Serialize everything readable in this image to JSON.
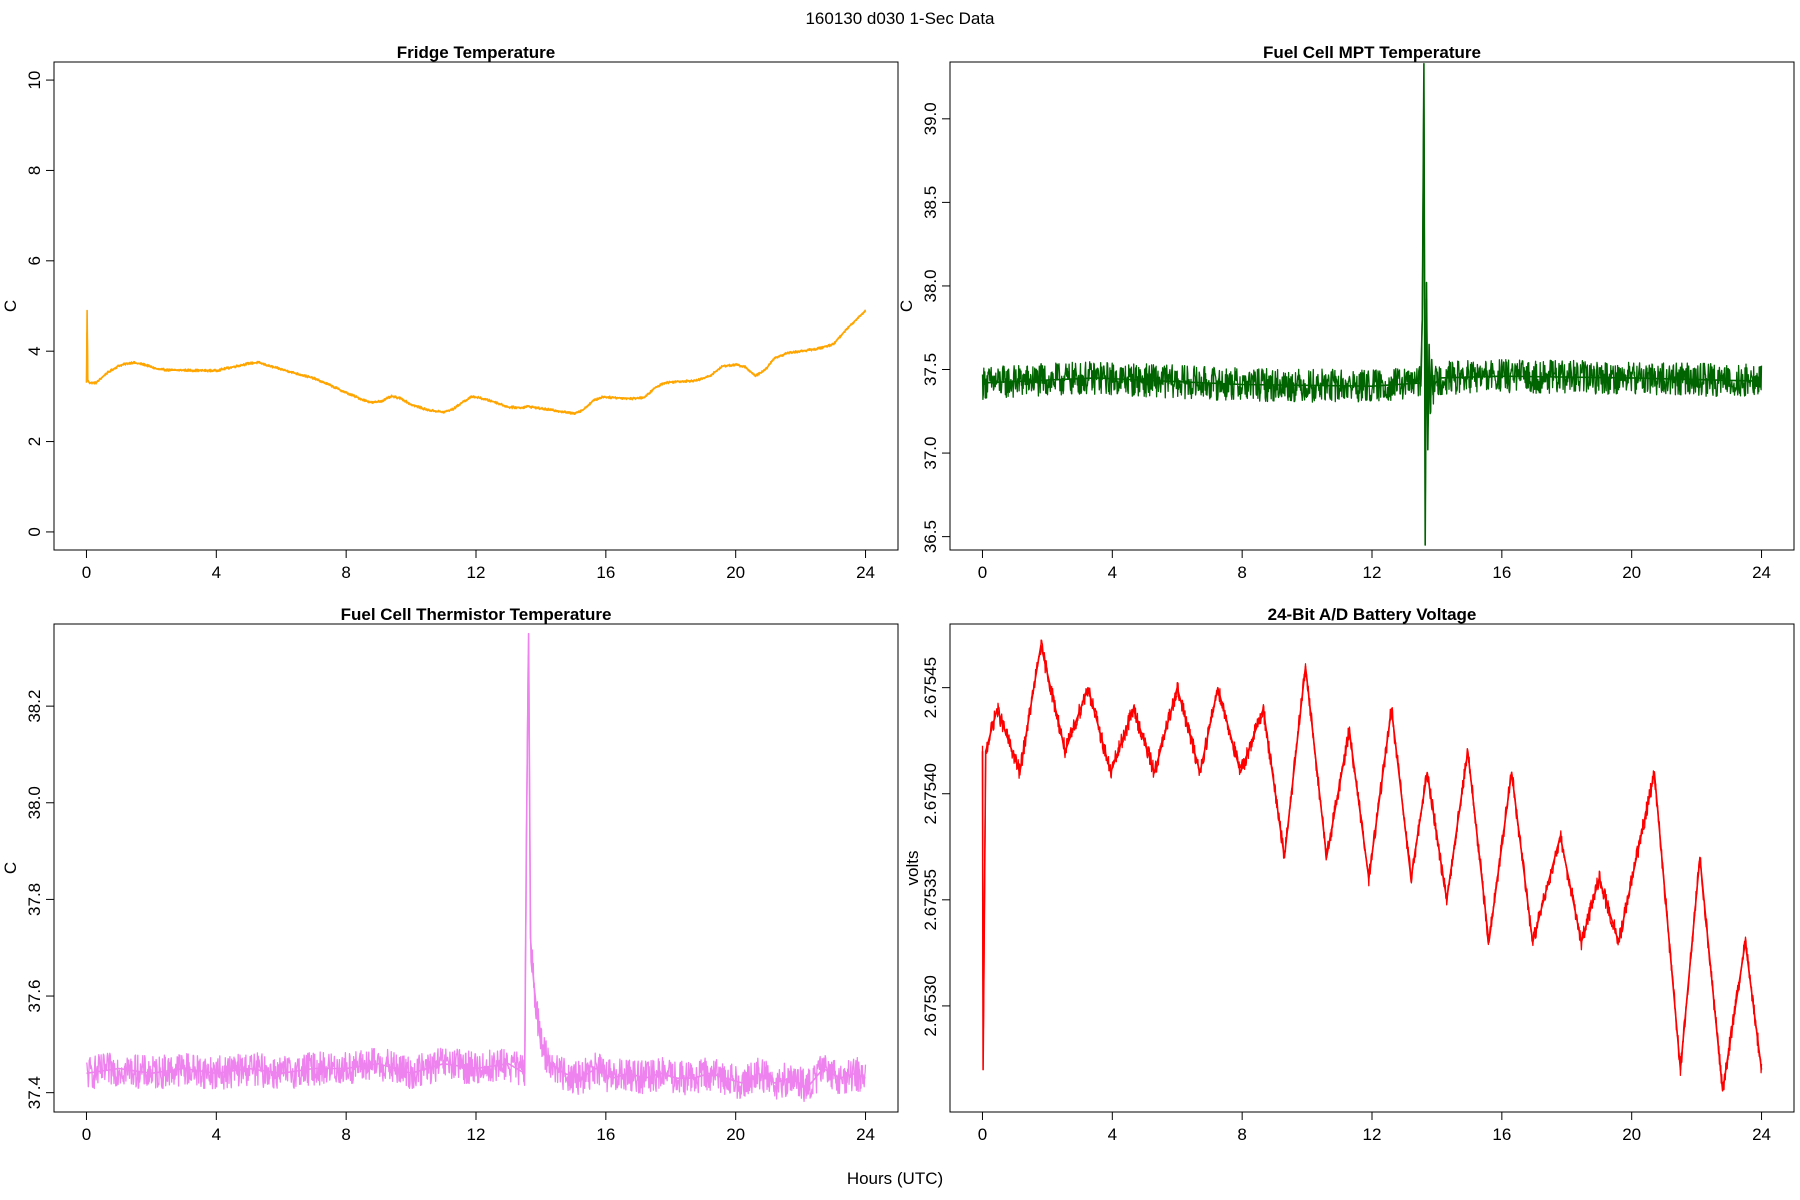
{
  "figure": {
    "title": "160130   d030   1-Sec Data",
    "xlabel": "Hours (UTC)"
  },
  "chart_data": [
    {
      "type": "line",
      "title": "Fridge Temperature",
      "xlabel": "Hours (UTC)",
      "ylabel": "C",
      "xlim": [
        -1,
        25
      ],
      "ylim": [
        -0.4,
        10.4
      ],
      "xticks": [
        0,
        4,
        8,
        12,
        16,
        20,
        24
      ],
      "yticks": [
        0,
        2,
        4,
        6,
        8,
        10
      ],
      "ytick_labels": [
        "0",
        "2",
        "4",
        "6",
        "8",
        "10"
      ],
      "color": "#ffa500",
      "noise": 0.03,
      "series": [
        {
          "x": [
            0,
            0.02,
            0.04,
            0.1,
            0.3,
            0.6,
            1.0,
            1.4,
            1.8,
            2.2,
            2.6,
            3.0,
            3.5,
            4.0,
            4.5,
            5.0,
            5.3,
            5.6,
            6.0,
            6.5,
            7.0,
            7.5,
            8.0,
            8.5,
            8.8,
            9.1,
            9.4,
            9.7,
            10.0,
            10.5,
            11.0,
            11.3,
            11.6,
            11.9,
            12.2,
            12.6,
            13.0,
            13.4,
            13.6,
            14.0,
            14.5,
            15.0,
            15.3,
            15.6,
            15.9,
            16.3,
            16.8,
            17.2,
            17.5,
            17.8,
            18.2,
            18.8,
            19.2,
            19.6,
            20.0,
            20.3,
            20.6,
            20.9,
            21.2,
            21.6,
            22.0,
            22.5,
            23.0,
            23.5,
            24.0
          ],
          "y": [
            3.3,
            4.9,
            3.35,
            3.3,
            3.3,
            3.5,
            3.68,
            3.75,
            3.7,
            3.6,
            3.58,
            3.58,
            3.57,
            3.57,
            3.65,
            3.73,
            3.75,
            3.68,
            3.6,
            3.5,
            3.4,
            3.25,
            3.08,
            2.93,
            2.86,
            2.9,
            3.0,
            2.95,
            2.82,
            2.7,
            2.65,
            2.72,
            2.88,
            3.0,
            2.95,
            2.87,
            2.76,
            2.75,
            2.78,
            2.73,
            2.68,
            2.62,
            2.7,
            2.9,
            2.99,
            2.97,
            2.95,
            2.98,
            3.18,
            3.3,
            3.33,
            3.35,
            3.45,
            3.67,
            3.7,
            3.65,
            3.45,
            3.58,
            3.85,
            3.96,
            4.0,
            4.05,
            4.15,
            4.55,
            4.9
          ]
        }
      ]
    },
    {
      "type": "line",
      "title": "Fuel Cell MPT Temperature",
      "xlabel": "Hours (UTC)",
      "ylabel": "C",
      "xlim": [
        -1,
        25
      ],
      "ylim": [
        36.42,
        39.34
      ],
      "xticks": [
        0,
        4,
        8,
        12,
        16,
        20,
        24
      ],
      "yticks": [
        36.5,
        37.0,
        37.5,
        38.0,
        38.5,
        39.0
      ],
      "ytick_labels": [
        "36.5",
        "37.0",
        "37.5",
        "38.0",
        "38.5",
        "39.0"
      ],
      "color": "#006400",
      "noise": 0.1,
      "series": [
        {
          "x": [
            0,
            3.5,
            4.5,
            8,
            12,
            13.5,
            13.55,
            13.6,
            13.64,
            13.68,
            13.72,
            13.76,
            13.8,
            13.84,
            13.88,
            13.95,
            14.1,
            16,
            20,
            24
          ],
          "y": [
            37.42,
            37.45,
            37.44,
            37.41,
            37.4,
            37.42,
            37.8,
            39.33,
            36.45,
            38.02,
            37.02,
            37.65,
            37.25,
            37.56,
            37.35,
            37.42,
            37.45,
            37.46,
            37.45,
            37.43
          ]
        }
      ]
    },
    {
      "type": "line",
      "title": "Fuel Cell Thermistor Temperature",
      "xlabel": "Hours (UTC)",
      "ylabel": "C",
      "xlim": [
        -1,
        25
      ],
      "ylim": [
        37.36,
        38.37
      ],
      "xticks": [
        0,
        4,
        8,
        12,
        16,
        20,
        24
      ],
      "yticks": [
        37.4,
        37.6,
        37.8,
        38.0,
        38.2
      ],
      "ytick_labels": [
        "37.4",
        "37.6",
        "37.8",
        "38.0",
        "38.2"
      ],
      "color": "#ee82ee",
      "noise": 0.035,
      "series": [
        {
          "x": [
            0,
            1,
            2,
            3,
            4,
            5,
            6,
            7,
            8,
            9,
            10,
            11,
            12,
            13,
            13.5,
            13.55,
            13.62,
            13.68,
            13.75,
            13.85,
            14.0,
            14.3,
            14.7,
            15.2,
            15.7,
            16.2,
            16.7,
            17.2,
            17.7,
            18.2,
            18.7,
            19.2,
            19.7,
            20.2,
            20.7,
            21.2,
            21.7,
            22.2,
            22.7,
            23.2,
            23.7,
            24.0
          ],
          "y": [
            37.44,
            37.45,
            37.44,
            37.45,
            37.44,
            37.45,
            37.44,
            37.45,
            37.45,
            37.46,
            37.44,
            37.46,
            37.45,
            37.46,
            37.44,
            37.9,
            38.35,
            37.72,
            37.65,
            37.58,
            37.5,
            37.46,
            37.44,
            37.43,
            37.45,
            37.43,
            37.44,
            37.43,
            37.44,
            37.43,
            37.43,
            37.44,
            37.43,
            37.42,
            37.44,
            37.42,
            37.43,
            37.41,
            37.45,
            37.43,
            37.44,
            37.43
          ]
        }
      ]
    },
    {
      "type": "line",
      "title": "24-Bit A/D Battery Voltage",
      "xlabel": "Hours (UTC)",
      "ylabel": "volts",
      "xlim": [
        -1,
        25
      ],
      "ylim": [
        2.67525,
        2.67548
      ],
      "xticks": [
        0,
        4,
        8,
        12,
        16,
        20,
        24
      ],
      "yticks": [
        2.6753,
        2.67535,
        2.6754,
        2.67545
      ],
      "ytick_labels": [
        "2.67530",
        "2.67535",
        "2.67540",
        "2.67545"
      ],
      "color": "#ff0000",
      "noise": 4e-06,
      "series": [
        {
          "x": [
            0,
            0.02,
            0.1,
            0.45,
            1.15,
            1.8,
            2.55,
            3.25,
            3.95,
            4.65,
            5.3,
            6.0,
            6.7,
            7.25,
            7.95,
            8.65,
            9.3,
            9.95,
            10.6,
            11.3,
            11.9,
            12.6,
            13.2,
            13.7,
            14.3,
            14.95,
            15.6,
            16.3,
            16.95,
            17.8,
            18.45,
            19.0,
            19.6,
            20.7,
            21.5,
            22.1,
            22.8,
            23.5,
            24.0
          ],
          "y": [
            2.67542,
            2.67527,
            2.67542,
            2.67544,
            2.67541,
            2.67547,
            2.67542,
            2.67545,
            2.67541,
            2.67544,
            2.67541,
            2.67545,
            2.67541,
            2.67545,
            2.67541,
            2.67544,
            2.67537,
            2.67546,
            2.67537,
            2.67543,
            2.67536,
            2.67544,
            2.67536,
            2.67541,
            2.67535,
            2.67542,
            2.67533,
            2.67541,
            2.67533,
            2.67538,
            2.67533,
            2.67536,
            2.67533,
            2.67541,
            2.67527,
            2.67537,
            2.67526,
            2.67533,
            2.67527
          ]
        }
      ]
    }
  ]
}
